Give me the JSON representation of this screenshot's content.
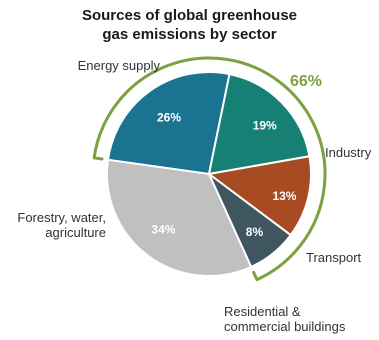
{
  "chart_data": {
    "type": "pie",
    "title": [
      "Sources of global greenhouse",
      "gas emissions by sector"
    ],
    "slices": [
      {
        "label": [
          "Energy supply"
        ],
        "value": 26,
        "value_label": "26%",
        "color": "#1a7491"
      },
      {
        "label": [
          "Industry"
        ],
        "value": 19,
        "value_label": "19%",
        "color": "#178074"
      },
      {
        "label": [
          "Transport"
        ],
        "value": 13,
        "value_label": "13%",
        "color": "#a84a22"
      },
      {
        "label": [
          "Residential &",
          "commercial buildings"
        ],
        "value": 8,
        "value_label": "8%",
        "color": "#3f5560"
      },
      {
        "label": [
          "Forestry, water,",
          "agriculture"
        ],
        "value": 34,
        "value_label": "34%",
        "color": "#c0c0c0"
      }
    ],
    "annotation": {
      "text": "66%",
      "color": "#7ba23f",
      "covers": [
        "Energy supply",
        "Industry",
        "Transport",
        "Residential & commercial buildings"
      ]
    }
  }
}
